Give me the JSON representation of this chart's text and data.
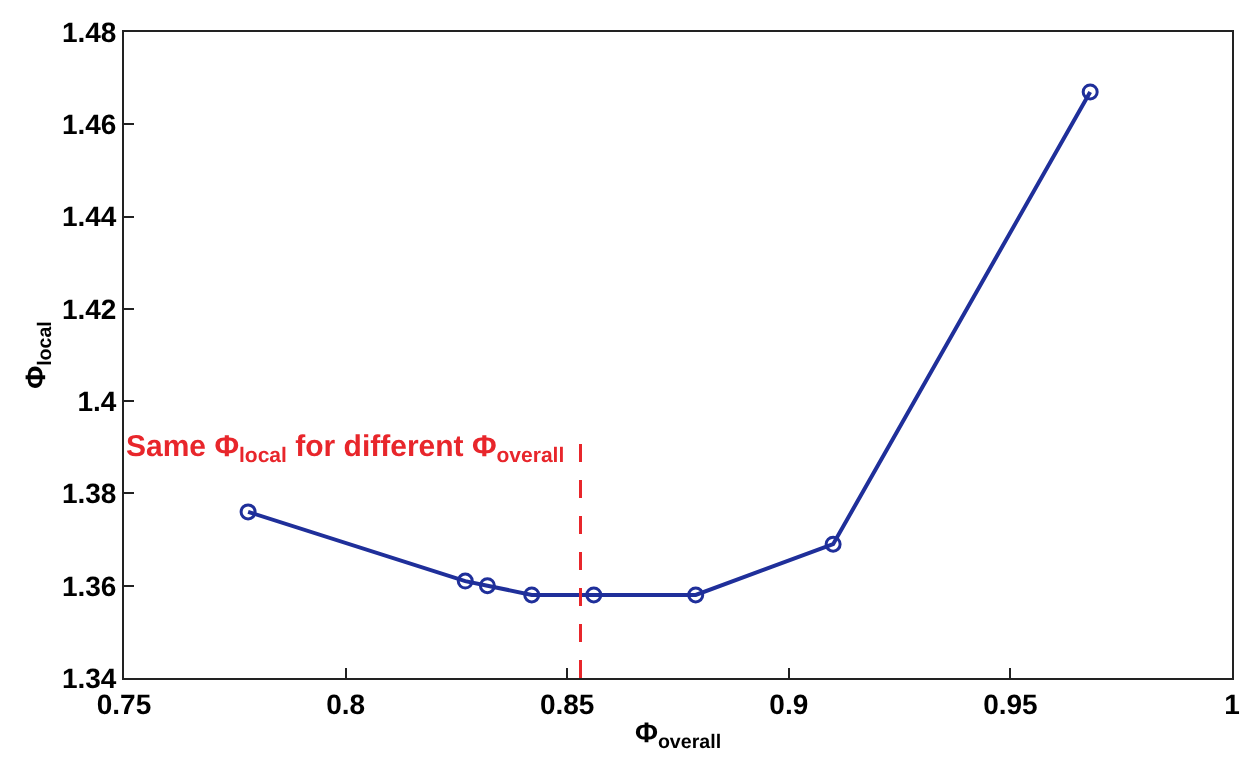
{
  "chart_data": {
    "type": "line",
    "xlabel": "Φ$_{overall}$",
    "ylabel": "Φ$_{local}$",
    "x": [
      0.778,
      0.827,
      0.832,
      0.842,
      0.856,
      0.879,
      0.91,
      0.968
    ],
    "series": [
      {
        "color": "#1f2f9a",
        "values": [
          1.376,
          1.361,
          1.36,
          1.358,
          1.358,
          1.358,
          1.369,
          1.467
        ]
      }
    ],
    "xlim": [
      0.75,
      1
    ],
    "xticks": [
      0.75,
      0.8,
      0.85,
      0.9,
      0.95,
      1
    ],
    "ylim": [
      1.34,
      1.48
    ],
    "yticks": [
      1.34,
      1.36,
      1.38,
      1.4,
      1.42,
      1.44,
      1.46,
      1.48
    ],
    "ref_lines": [
      {
        "axis": "x",
        "value": 0.853,
        "label": "Same Φ$_{local}$ for different Φ$_{overall}$",
        "color": "#e8262b",
        "line_style": "dashed"
      }
    ],
    "marker": "circle",
    "line_style": "solid"
  }
}
